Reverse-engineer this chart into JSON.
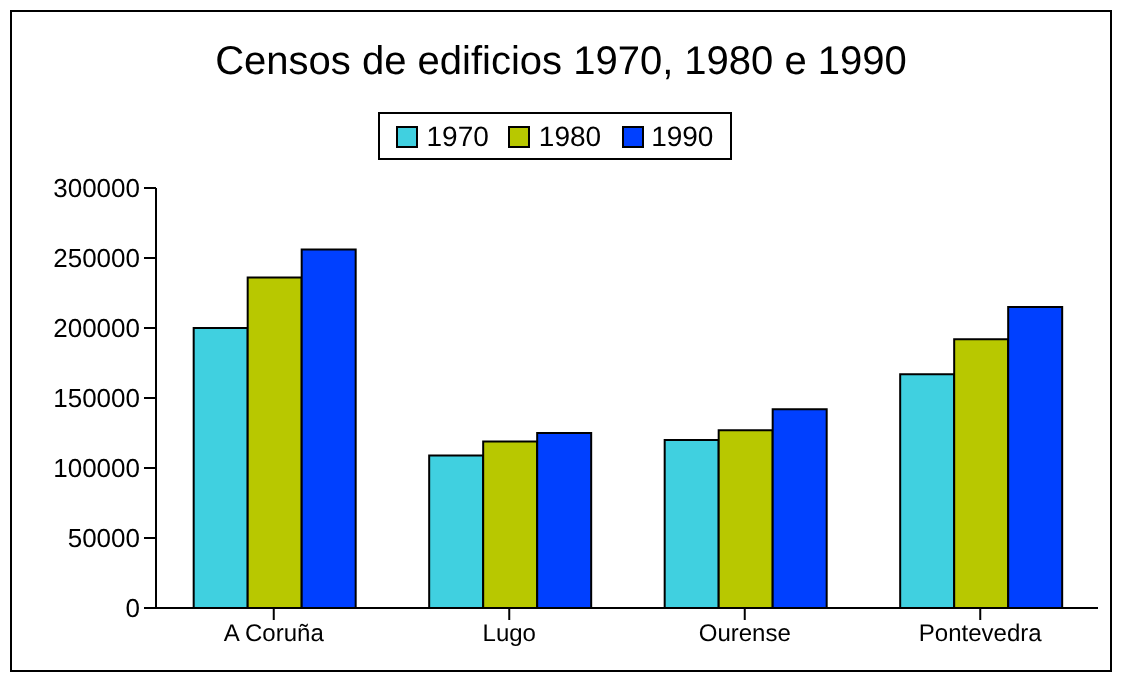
{
  "chart_data": {
    "type": "bar",
    "title": "Censos de edificios 1970, 1980 e 1990",
    "categories": [
      "A Coruña",
      "Lugo",
      "Ourense",
      "Pontevedra"
    ],
    "series": [
      {
        "name": "1970",
        "color": "#40d0e0",
        "values": [
          200000,
          109000,
          120000,
          167000
        ]
      },
      {
        "name": "1980",
        "color": "#b8c800",
        "values": [
          236000,
          119000,
          127000,
          192000
        ]
      },
      {
        "name": "1990",
        "color": "#0040ff",
        "values": [
          256000,
          125000,
          142000,
          215000
        ]
      }
    ],
    "ylim": [
      0,
      300000
    ],
    "yticks": [
      0,
      50000,
      100000,
      150000,
      200000,
      250000,
      300000
    ],
    "grid": false,
    "legend": "top"
  }
}
